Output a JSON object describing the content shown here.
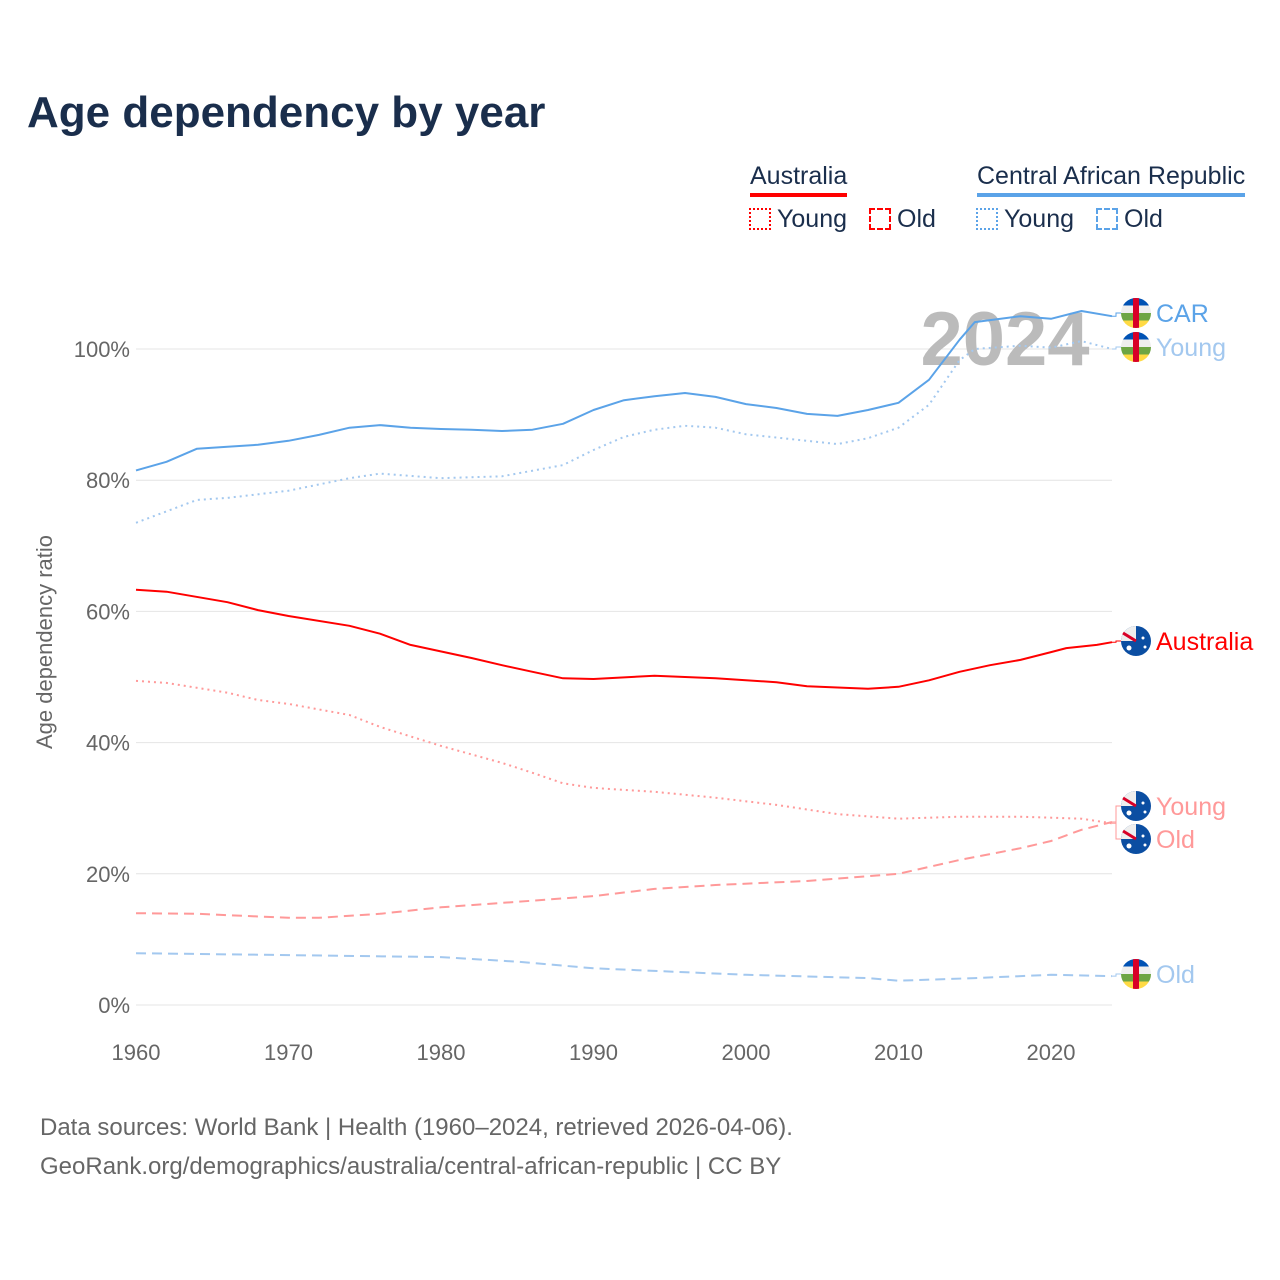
{
  "title": "Age dependency by year",
  "legend": {
    "groups": [
      {
        "name": "Australia",
        "color": "#ff0000",
        "items": [
          "Young",
          "Old"
        ]
      },
      {
        "name": "Central African Republic",
        "color": "#5ba3e8",
        "items": [
          "Young",
          "Old"
        ]
      }
    ]
  },
  "footer": {
    "line1": "Data sources: World Bank | Health (1960–2024, retrieved 2026-04-06).",
    "line2": "GeoRank.org/demographics/australia/central-african-republic | CC BY"
  },
  "chart_data": {
    "type": "line",
    "title": "Age dependency by year",
    "xlabel": "",
    "ylabel": "Age dependency ratio",
    "xlim": [
      1960,
      2024
    ],
    "ylim": [
      0,
      110
    ],
    "xticks": [
      1960,
      1970,
      1980,
      1990,
      2000,
      2010,
      2020
    ],
    "yticks": [
      0,
      20,
      40,
      60,
      80,
      100
    ],
    "ytick_labels": [
      "0%",
      "20%",
      "40%",
      "60%",
      "80%",
      "100%"
    ],
    "grid": true,
    "year_watermark": "2024",
    "series": [
      {
        "name": "CAR",
        "label": "CAR",
        "country": "Central African Republic",
        "kind": "total",
        "style": "solid",
        "color": "#5ba3e8",
        "x": [
          1960,
          1962,
          1964,
          1966,
          1968,
          1970,
          1972,
          1974,
          1976,
          1978,
          1980,
          1982,
          1984,
          1986,
          1988,
          1990,
          1992,
          1994,
          1996,
          1998,
          2000,
          2002,
          2004,
          2006,
          2008,
          2010,
          2012,
          2014,
          2015,
          2018,
          2020,
          2022,
          2024
        ],
        "y": [
          81.5,
          82.8,
          84.8,
          85.1,
          85.4,
          86,
          86.9,
          88,
          88.4,
          88,
          87.8,
          87.7,
          87.5,
          87.7,
          88.6,
          90.7,
          92.2,
          92.8,
          93.3,
          92.7,
          91.6,
          91,
          90.1,
          89.8,
          90.7,
          91.8,
          95.3,
          101.4,
          104.1,
          105,
          104.6,
          105.8,
          105
        ]
      },
      {
        "name": "CAR Young",
        "label": "Young",
        "country": "Central African Republic",
        "kind": "young",
        "style": "dotted",
        "color": "#a3c8ef",
        "x": [
          1960,
          1964,
          1966,
          1970,
          1974,
          1976,
          1980,
          1984,
          1988,
          1990,
          1992,
          1994,
          1996,
          1998,
          2000,
          2004,
          2006,
          2008,
          2010,
          2012,
          2014,
          2015,
          2018,
          2020,
          2022,
          2024
        ],
        "y": [
          73.5,
          77,
          77.3,
          78.4,
          80.3,
          81,
          80.3,
          80.6,
          82.3,
          84.6,
          86.6,
          87.7,
          88.3,
          88,
          87,
          86,
          85.5,
          86.4,
          88,
          91.5,
          98.3,
          100,
          100.5,
          100.2,
          101.2,
          100
        ]
      },
      {
        "name": "CAR Old",
        "label": "Old",
        "country": "Central African Republic",
        "kind": "old",
        "style": "dashed",
        "color": "#a3c8ef",
        "x": [
          1960,
          1970,
          1980,
          1985,
          1990,
          2000,
          2008,
          2010,
          2015,
          2020,
          2024
        ],
        "y": [
          7.9,
          7.6,
          7.3,
          6.6,
          5.6,
          4.6,
          4.1,
          3.7,
          4.1,
          4.6,
          4.4
        ]
      },
      {
        "name": "Australia",
        "label": "Australia",
        "country": "Australia",
        "kind": "total",
        "style": "solid",
        "color": "#ff0000",
        "x": [
          1960,
          1962,
          1966,
          1968,
          1970,
          1974,
          1976,
          1978,
          1982,
          1984,
          1986,
          1988,
          1990,
          1994,
          1998,
          2002,
          2004,
          2008,
          2010,
          2012,
          2014,
          2016,
          2018,
          2020,
          2021,
          2023,
          2024
        ],
        "y": [
          63.3,
          63,
          61.4,
          60.2,
          59.3,
          57.8,
          56.6,
          54.9,
          52.9,
          51.8,
          50.8,
          49.8,
          49.7,
          50.2,
          49.8,
          49.2,
          48.6,
          48.2,
          48.5,
          49.5,
          50.8,
          51.8,
          52.6,
          53.8,
          54.4,
          54.9,
          55.3
        ]
      },
      {
        "name": "Australia Young",
        "label": "Young",
        "country": "Australia",
        "kind": "young",
        "style": "dotted",
        "color": "#ff9999",
        "x": [
          1960,
          1962,
          1966,
          1968,
          1970,
          1974,
          1976,
          1980,
          1984,
          1986,
          1988,
          1990,
          1994,
          1998,
          2002,
          2006,
          2010,
          2014,
          2018,
          2022,
          2024
        ],
        "y": [
          49.4,
          49.1,
          47.6,
          46.5,
          45.9,
          44.2,
          42.4,
          39.5,
          36.9,
          35.4,
          33.8,
          33.1,
          32.5,
          31.6,
          30.5,
          29.1,
          28.4,
          28.7,
          28.7,
          28.4,
          27.7
        ]
      },
      {
        "name": "Australia Old",
        "label": "Old",
        "country": "Australia",
        "kind": "old",
        "style": "dashed",
        "color": "#ff9999",
        "x": [
          1960,
          1964,
          1970,
          1972,
          1976,
          1980,
          1986,
          1990,
          1994,
          1998,
          2004,
          2010,
          2014,
          2018,
          2020,
          2022,
          2024
        ],
        "y": [
          14,
          13.9,
          13.3,
          13.3,
          13.9,
          14.9,
          15.9,
          16.6,
          17.7,
          18.3,
          18.9,
          20,
          22.1,
          23.9,
          25,
          26.7,
          27.9
        ]
      }
    ]
  }
}
